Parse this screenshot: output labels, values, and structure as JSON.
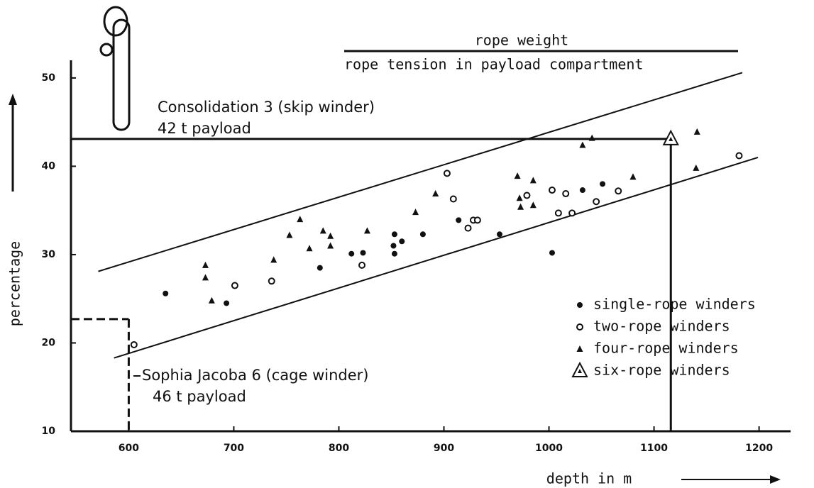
{
  "chart_data": {
    "type": "scatter",
    "title": "rope weight",
    "subtitle": "rope tension in payload compartment",
    "x_label": "depth in m",
    "y_label": "percentage",
    "xlim": [
      545,
      1230
    ],
    "ylim": [
      10,
      52
    ],
    "xticks": [
      600,
      700,
      800,
      900,
      1000,
      1100,
      1200
    ],
    "yticks": [
      10,
      20,
      30,
      40,
      50
    ],
    "grid": false,
    "legend": "lower right",
    "series": [
      {
        "name": "single-rope winders",
        "color": "#111111",
        "marker": "dot",
        "x": [
          635,
          693,
          782,
          812,
          823,
          853,
          852,
          860,
          853,
          880,
          914,
          953,
          1003,
          1032,
          1051
        ],
        "values": [
          25.6,
          24.5,
          28.5,
          30.1,
          30.2,
          30.1,
          31.0,
          31.5,
          32.3,
          32.3,
          33.9,
          32.3,
          30.2,
          37.3,
          38.0
        ]
      },
      {
        "name": "two-rope winders",
        "color": "#111111",
        "marker": "circle",
        "x": [
          605,
          701,
          736,
          822,
          903,
          909,
          923,
          928,
          932,
          979,
          1003,
          1016,
          1009,
          1022,
          1045,
          1066,
          1181
        ],
        "values": [
          19.8,
          26.5,
          27.0,
          28.8,
          39.2,
          36.3,
          33.0,
          33.9,
          33.9,
          36.7,
          37.3,
          36.9,
          34.7,
          34.7,
          36.0,
          37.2,
          41.2
        ]
      },
      {
        "name": "four-rope winders",
        "color": "#111111",
        "marker": "triangle",
        "x": [
          673,
          673,
          679,
          738,
          753,
          763,
          772,
          785,
          792,
          792,
          827,
          873,
          892,
          970,
          972,
          973,
          985,
          985,
          1032,
          1041,
          1080,
          1141,
          1140
        ],
        "values": [
          28.8,
          27.4,
          24.8,
          29.4,
          32.2,
          34.0,
          30.7,
          32.7,
          32.1,
          31.0,
          32.7,
          34.8,
          36.9,
          38.9,
          36.4,
          35.4,
          38.4,
          35.6,
          42.4,
          43.2,
          38.8,
          43.9,
          39.8
        ]
      },
      {
        "name": "six-rope winders",
        "color": "#111111",
        "marker": "triangle-open",
        "x": [
          1116
        ],
        "values": [
          43.1
        ]
      }
    ],
    "trend_lines": [
      {
        "x": [
          571,
          1184
        ],
        "y": [
          28.1,
          50.6
        ]
      },
      {
        "x": [
          586,
          1199
        ],
        "y": [
          18.3,
          41.0
        ]
      }
    ],
    "guides": [
      {
        "x": 1116,
        "y": 43.1,
        "dashed": false,
        "label": "Consolidation 3  (skip winder)",
        "sublabel": "42 t payload"
      },
      {
        "x": 600,
        "y": 22.7,
        "dashed": true,
        "label": "Sophia Jacoba 6  (cage winder)",
        "sublabel": "46 t payload"
      }
    ]
  }
}
